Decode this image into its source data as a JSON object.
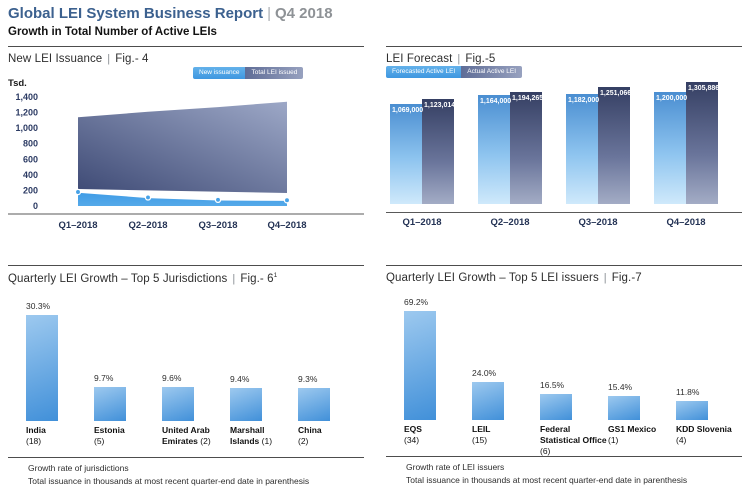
{
  "header": {
    "title": "Global LEI System Business Report",
    "separator": "|",
    "period": "Q4 2018",
    "subtitle": "Growth in Total Number of Active LEIs"
  },
  "colors": {
    "brand_blue": "#3c618f",
    "header_gray": "#8e9296",
    "light_blue": "#47a2e7",
    "area_dark_start": "#3e4a75",
    "area_dark_end": "#9da8c7",
    "bar_dark_top": "#353f63",
    "bar_dark_bottom": "#a3acc5",
    "bar_light_top": "#4a8ed1",
    "bar_light_bottom": "#cfe9fb",
    "navy_text": "#2b3a63",
    "axis_line": "#595959",
    "marker_stroke": "#ffffff"
  },
  "chart_data": [
    {
      "id": "fig4",
      "type": "area",
      "title": "New LEI Issuance",
      "fig_label": "Fig.- 4",
      "unit_label": "Tsd.",
      "categories": [
        "Q1–2018",
        "Q2–2018",
        "Q3–2018",
        "Q4–2018"
      ],
      "series": [
        {
          "name": "New issuance",
          "values": [
            180,
            110,
            80,
            75
          ]
        },
        {
          "name": "Total LEI issued",
          "values": [
            1140,
            1210,
            1270,
            1340
          ]
        }
      ],
      "ylim": [
        0,
        1400
      ],
      "ytick_step": 200,
      "grid": "off",
      "legend_position": "top-right"
    },
    {
      "id": "fig5",
      "type": "bar",
      "title": "LEI Forecast",
      "fig_label": "Fig.-5",
      "categories": [
        "Q1–2018",
        "Q2–2018",
        "Q3–2018",
        "Q4–2018"
      ],
      "series": [
        {
          "name": "Forecasted Active LEI",
          "values": [
            1069000,
            1164000,
            1182000,
            1200000
          ]
        },
        {
          "name": "Actual Active LEI",
          "values": [
            1123014,
            1194265,
            1251066,
            1305886
          ]
        }
      ],
      "bar_labels": "values shown on bars with thousands separators",
      "grid": "off",
      "legend_position": "top-left"
    },
    {
      "id": "fig6",
      "type": "bar",
      "title": "Quarterly LEI Growth – Top 5 Jurisdictions",
      "fig_label": "Fig.- 6",
      "fig_superscript": "1",
      "value_suffix": "%",
      "items": [
        {
          "name": "India",
          "count": "(18)",
          "value": 30.3
        },
        {
          "name": "Estonia",
          "count": "(5)",
          "value": 9.7
        },
        {
          "name": "United Arab Emirates",
          "name_lines": [
            "United Arab",
            "Emirates"
          ],
          "count": "(2)",
          "count_inline": true,
          "value": 9.6
        },
        {
          "name": "Marshall Islands",
          "name_lines": [
            "Marshall",
            "Islands"
          ],
          "count": "(1)",
          "count_inline": true,
          "value": 9.4
        },
        {
          "name": "China",
          "count": "(2)",
          "value": 9.3
        }
      ],
      "footnotes": [
        "Growth rate of jurisdictions",
        "Total issuance in thousands at most recent quarter-end date in parenthesis"
      ]
    },
    {
      "id": "fig7",
      "type": "bar",
      "title": "Quarterly LEI Growth – Top 5 LEI issuers",
      "fig_label": "Fig.-7",
      "value_suffix": "%",
      "items": [
        {
          "name": "EQS",
          "count": "(34)",
          "value": 69.2
        },
        {
          "name": "LEIL",
          "count": "(15)",
          "value": 24.0
        },
        {
          "name": "Federal Statistical Office",
          "name_lines": [
            "Federal",
            "Statistical Office"
          ],
          "count": "(6)",
          "value": 16.5
        },
        {
          "name": "GS1 Mexico",
          "count": "(1)",
          "value": 15.4
        },
        {
          "name": "KDD Slovenia",
          "count": "(4)",
          "value": 11.8
        }
      ],
      "footnotes": [
        "Growth rate of LEI issuers",
        "Total issuance in thousands at most recent quarter-end date in parenthesis"
      ]
    }
  ]
}
